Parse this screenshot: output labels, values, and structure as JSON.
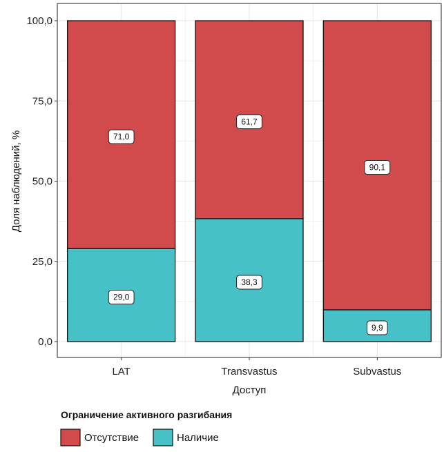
{
  "chart_data": {
    "type": "bar",
    "stacked": true,
    "categories": [
      "LAT",
      "Transvastus",
      "Subvastus"
    ],
    "series": [
      {
        "name": "Наличие",
        "values": [
          29.0,
          38.3,
          9.9
        ],
        "labels": [
          "29,0",
          "38,3",
          "9,9"
        ],
        "color": "#47C1C8"
      },
      {
        "name": "Отсутствие",
        "values": [
          71.0,
          61.7,
          90.1
        ],
        "labels": [
          "71,0",
          "61,7",
          "90,1"
        ],
        "color": "#D24A4B"
      }
    ],
    "xlabel": "Доступ",
    "ylabel": "Доля наблюдений, %",
    "ylim": [
      0,
      100
    ],
    "yticks": [
      0,
      25,
      50,
      75,
      100
    ],
    "ytick_labels": [
      "0,0",
      "25,0",
      "50,0",
      "75,0",
      "100,0"
    ],
    "grid": true,
    "legend": {
      "title": "Ограничение активного разгибания",
      "placement": "bottom-left",
      "entries": [
        {
          "name": "Отсутствие",
          "color": "#D24A4B"
        },
        {
          "name": "Наличие",
          "color": "#47C1C8"
        }
      ]
    }
  }
}
